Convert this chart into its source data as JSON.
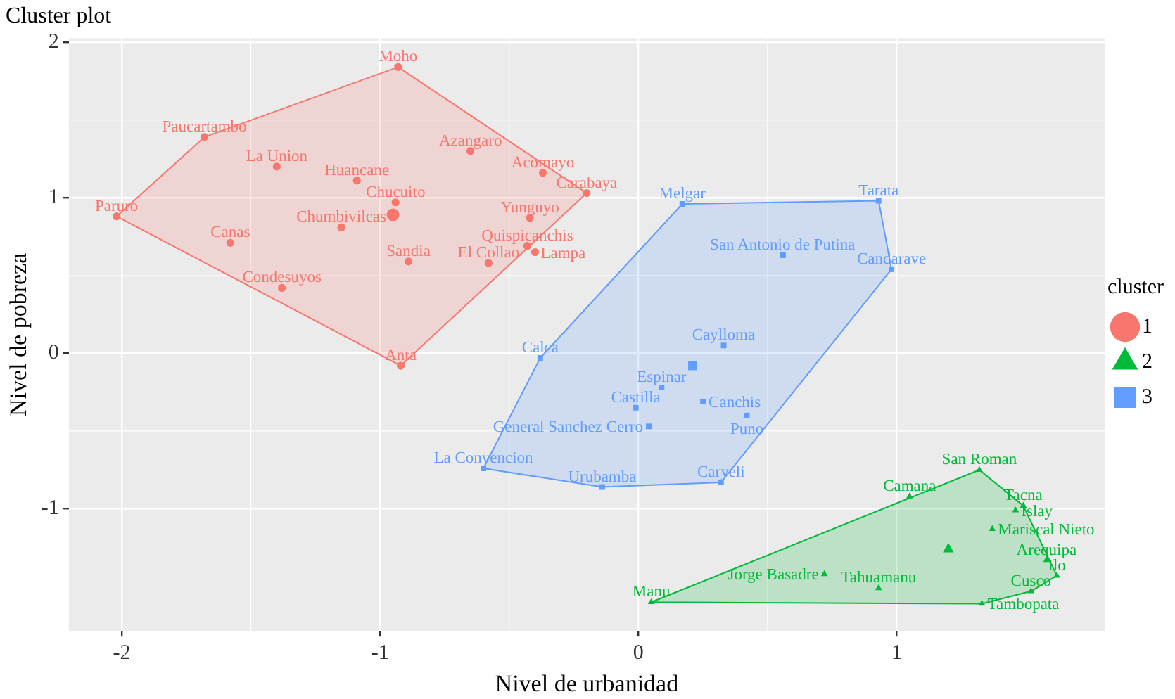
{
  "chart_data": {
    "type": "scatter",
    "title": "Cluster plot",
    "xlabel": "Nivel de urbanidad",
    "ylabel": "Nivel de pobreza",
    "legend_title": "cluster",
    "legend": "right",
    "grid": true,
    "xlim": [
      -2.205,
      1.805
    ],
    "xticks": [
      -2,
      -1,
      0,
      1
    ],
    "ylim": [
      -1.785,
      2.025
    ],
    "yticks": [
      -1,
      0,
      1,
      2
    ],
    "series": [
      {
        "type": "area",
        "color": "#f8766d",
        "x": [
          -2.02,
          -1.68,
          -0.93,
          -0.2,
          -0.92
        ],
        "values": [
          0.88,
          1.39,
          1.84,
          1.03,
          -0.08
        ]
      },
      {
        "type": "area",
        "color": "#00ba38",
        "x": [
          0.05,
          1.32,
          1.49,
          1.62,
          1.52,
          1.33
        ],
        "values": [
          -1.6,
          -0.75,
          -0.98,
          -1.43,
          -1.53,
          -1.61
        ]
      },
      {
        "type": "area",
        "color": "#619cff",
        "x": [
          -0.6,
          -0.38,
          0.17,
          0.93,
          0.98,
          0.32,
          -0.14
        ],
        "values": [
          -0.74,
          -0.03,
          0.96,
          0.98,
          0.54,
          -0.83,
          -0.86
        ]
      },
      {
        "name": "1",
        "color": "#f8766d",
        "marker": "circle",
        "x": [
          -0.93,
          -1.68,
          -1.4,
          -1.09,
          -0.94,
          -1.15,
          -2.02,
          -1.58,
          -1.38,
          -0.92,
          -0.89,
          -0.65,
          -0.37,
          -0.2,
          -0.42,
          -0.43,
          -0.4,
          -0.58
        ],
        "values": [
          1.84,
          1.39,
          1.2,
          1.11,
          0.97,
          0.81,
          0.88,
          0.71,
          0.42,
          -0.08,
          0.59,
          1.3,
          1.16,
          1.03,
          0.87,
          0.69,
          0.65,
          0.58
        ]
      },
      {
        "name": "2",
        "color": "#00ba38",
        "marker": "triangle",
        "x": [
          1.32,
          1.05,
          1.49,
          1.46,
          1.37,
          1.58,
          1.62,
          1.52,
          1.33,
          0.93,
          0.72,
          0.05
        ],
        "values": [
          -0.75,
          -0.92,
          -0.98,
          -1.01,
          -1.13,
          -1.33,
          -1.43,
          -1.53,
          -1.61,
          -1.51,
          -1.42,
          -1.6
        ]
      },
      {
        "name": "3",
        "color": "#619cff",
        "marker": "square",
        "x": [
          0.17,
          0.93,
          0.56,
          0.98,
          0.33,
          0.09,
          0.25,
          -0.01,
          0.42,
          0.04,
          -0.38,
          -0.6,
          -0.14,
          0.32
        ],
        "values": [
          0.96,
          0.98,
          0.63,
          0.54,
          0.05,
          -0.22,
          -0.31,
          -0.35,
          -0.4,
          -0.47,
          -0.03,
          -0.74,
          -0.86,
          -0.83
        ]
      },
      {
        "color": "#f8766d",
        "marker": "circle",
        "x": [
          -0.95
        ],
        "values": [
          0.89
        ]
      },
      {
        "color": "#00ba38",
        "marker": "triangle",
        "x": [
          1.2
        ],
        "values": [
          -1.26
        ]
      },
      {
        "color": "#619cff",
        "marker": "square",
        "x": [
          0.21
        ],
        "values": [
          -0.08
        ]
      }
    ],
    "annotations": [
      {
        "text": "Moho",
        "x": -0.93,
        "y": 1.84
      },
      {
        "text": "Paucartambo",
        "x": -1.68,
        "y": 1.39
      },
      {
        "text": "La Union",
        "x": -1.4,
        "y": 1.2
      },
      {
        "text": "Huancane",
        "x": -1.09,
        "y": 1.11
      },
      {
        "text": "Chucuito",
        "x": -0.94,
        "y": 0.97
      },
      {
        "text": "Chumbivilcas",
        "x": -1.15,
        "y": 0.81
      },
      {
        "text": "Paruro",
        "x": -2.02,
        "y": 0.88
      },
      {
        "text": "Canas",
        "x": -1.58,
        "y": 0.71
      },
      {
        "text": "Condesuyos",
        "x": -1.38,
        "y": 0.42
      },
      {
        "text": "Anta",
        "x": -0.92,
        "y": -0.08
      },
      {
        "text": "Sandia",
        "x": -0.89,
        "y": 0.59
      },
      {
        "text": "Azangaro",
        "x": -0.65,
        "y": 1.3
      },
      {
        "text": "Acomayo",
        "x": -0.37,
        "y": 1.16
      },
      {
        "text": "Carabaya",
        "x": -0.2,
        "y": 1.03
      },
      {
        "text": "Yunguyo",
        "x": -0.42,
        "y": 0.87
      },
      {
        "text": "Quispicanchis",
        "x": -0.43,
        "y": 0.69
      },
      {
        "text": "Lampa",
        "x": -0.4,
        "y": 0.65
      },
      {
        "text": "El Collao",
        "x": -0.58,
        "y": 0.58
      },
      {
        "text": "San Roman",
        "x": 1.32,
        "y": -0.75
      },
      {
        "text": "Camana",
        "x": 1.05,
        "y": -0.92
      },
      {
        "text": "Tacna",
        "x": 1.49,
        "y": -0.98
      },
      {
        "text": "Islay",
        "x": 1.46,
        "y": -1.01
      },
      {
        "text": "Mariscal Nieto",
        "x": 1.37,
        "y": -1.13
      },
      {
        "text": "Arequipa",
        "x": 1.58,
        "y": -1.33
      },
      {
        "text": "Ilo",
        "x": 1.62,
        "y": -1.43
      },
      {
        "text": "Cusco",
        "x": 1.52,
        "y": -1.53
      },
      {
        "text": "Tambopata",
        "x": 1.33,
        "y": -1.61
      },
      {
        "text": "Tahuamanu",
        "x": 0.93,
        "y": -1.51
      },
      {
        "text": "Jorge Basadre",
        "x": 0.72,
        "y": -1.42
      },
      {
        "text": "Manu",
        "x": 0.05,
        "y": -1.6
      },
      {
        "text": "Melgar",
        "x": 0.17,
        "y": 0.96
      },
      {
        "text": "Tarata",
        "x": 0.93,
        "y": 0.98
      },
      {
        "text": "San Antonio de Putina",
        "x": 0.56,
        "y": 0.63
      },
      {
        "text": "Candarave",
        "x": 0.98,
        "y": 0.54
      },
      {
        "text": "Caylloma",
        "x": 0.33,
        "y": 0.05
      },
      {
        "text": "Espinar",
        "x": 0.09,
        "y": -0.22
      },
      {
        "text": "Canchis",
        "x": 0.25,
        "y": -0.31
      },
      {
        "text": "Castilla",
        "x": -0.01,
        "y": -0.35
      },
      {
        "text": "Puno",
        "x": 0.42,
        "y": -0.4
      },
      {
        "text": "General Sanchez Cerro",
        "x": 0.04,
        "y": -0.47
      },
      {
        "text": "Calca",
        "x": -0.38,
        "y": -0.03
      },
      {
        "text": "La Convencion",
        "x": -0.6,
        "y": -0.74
      },
      {
        "text": "Urubamba",
        "x": -0.14,
        "y": -0.86
      },
      {
        "text": "Caryeli",
        "x": 0.32,
        "y": -0.83
      }
    ]
  }
}
